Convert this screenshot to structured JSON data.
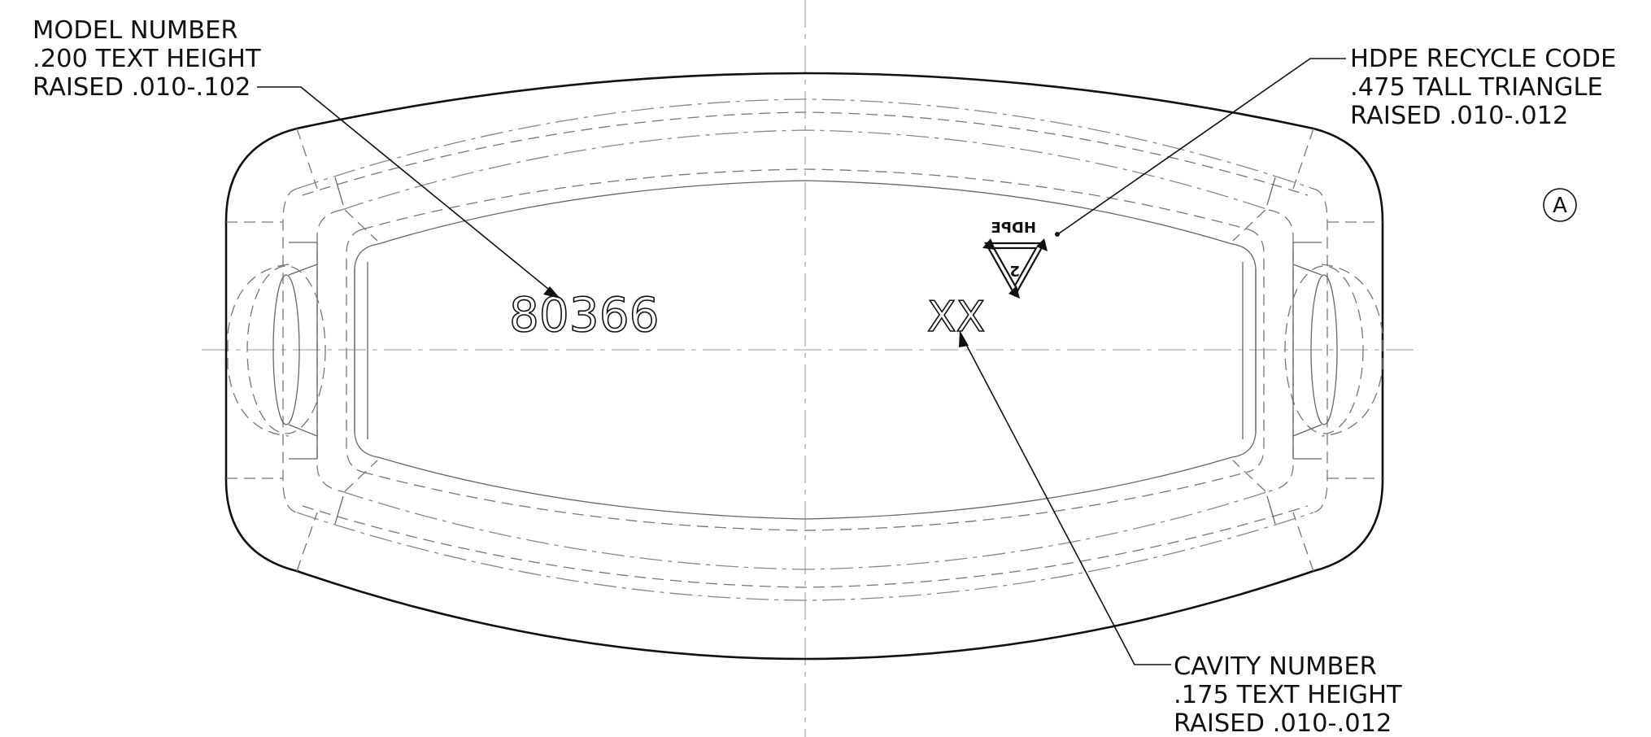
{
  "notes": {
    "model": {
      "line1": "MODEL  NUMBER",
      "line2": ".200 TEXT HEIGHT",
      "line3": "RAISED .010-.102"
    },
    "recycle": {
      "line1": "HDPE RECYCLE CODE",
      "line2": ".475 TALL TRIANGLE",
      "line3": "RAISED .010-.012"
    },
    "cavity": {
      "line1": "CAVITY NUMBER",
      "line2": ".175 TEXT HEIGHT",
      "line3": "RAISED .010-.012"
    }
  },
  "part": {
    "model_number": "80366",
    "cavity_number": "XX",
    "recycle_symbol_number": "2",
    "recycle_symbol_label": "HDPE"
  },
  "view_label": "A"
}
